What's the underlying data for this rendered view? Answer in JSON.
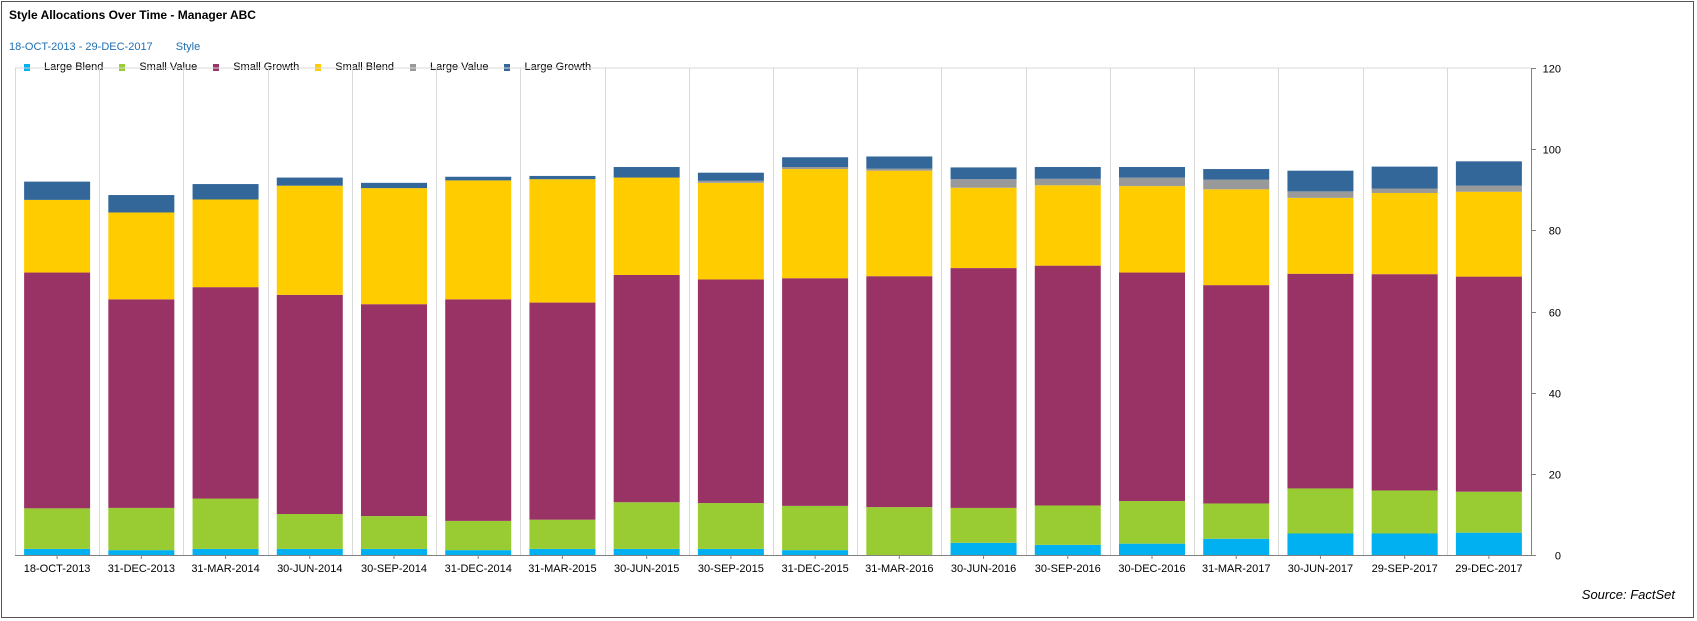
{
  "chart_data": {
    "type": "bar",
    "stacked": true,
    "title": "Style Allocations Over Time - Manager ABC",
    "date_range": "18-OCT-2013 - 29-DEC-2017",
    "group_label": "Style",
    "source": "Source: FactSet",
    "ylim": [
      0,
      120
    ],
    "yticks": [
      0,
      20,
      40,
      60,
      80,
      100,
      120
    ],
    "y_axis_side": "right",
    "legend_position": "top-left",
    "categories": [
      "18-OCT-2013",
      "31-DEC-2013",
      "31-MAR-2014",
      "30-JUN-2014",
      "30-SEP-2014",
      "31-DEC-2014",
      "31-MAR-2015",
      "30-JUN-2015",
      "30-SEP-2015",
      "31-DEC-2015",
      "31-MAR-2016",
      "30-JUN-2016",
      "30-SEP-2016",
      "30-DEC-2016",
      "31-MAR-2017",
      "30-JUN-2017",
      "29-SEP-2017",
      "29-DEC-2017"
    ],
    "series": [
      {
        "name": "Large Blend",
        "color": "#00b0f0",
        "values": [
          1.5,
          1.2,
          1.5,
          1.5,
          1.5,
          1.2,
          1.5,
          1.5,
          1.5,
          1.2,
          0.0,
          3.0,
          2.5,
          2.8,
          4.0,
          5.3,
          5.3,
          5.5
        ]
      },
      {
        "name": "Small Value",
        "color": "#99cc33",
        "values": [
          10.0,
          10.4,
          12.4,
          8.6,
          8.1,
          7.2,
          7.2,
          11.5,
          11.3,
          10.9,
          11.8,
          8.6,
          9.7,
          10.5,
          8.7,
          11.1,
          10.6,
          10.1
        ]
      },
      {
        "name": "Small Growth",
        "color": "#993366",
        "values": [
          58.1,
          51.4,
          52.1,
          54.0,
          52.2,
          54.6,
          53.5,
          56.0,
          55.1,
          56.1,
          56.9,
          59.1,
          59.1,
          56.3,
          53.8,
          52.9,
          53.3,
          53.0
        ]
      },
      {
        "name": "Small Blend",
        "color": "#ffcc00",
        "values": [
          17.9,
          21.4,
          21.6,
          26.9,
          28.6,
          29.3,
          30.4,
          24.0,
          23.8,
          26.9,
          26.0,
          19.8,
          19.8,
          21.3,
          23.6,
          18.7,
          20.0,
          20.9
        ]
      },
      {
        "name": "Large Value",
        "color": "#999999",
        "values": [
          0.0,
          0.0,
          0.0,
          0.0,
          0.0,
          0.0,
          0.0,
          0.0,
          0.5,
          0.5,
          0.5,
          2.1,
          1.6,
          2.1,
          2.4,
          1.6,
          1.1,
          1.5
        ]
      },
      {
        "name": "Large Growth",
        "color": "#336699",
        "values": [
          4.5,
          4.3,
          3.8,
          2.0,
          1.3,
          0.9,
          0.8,
          2.6,
          2.0,
          2.4,
          3.0,
          2.9,
          2.9,
          2.6,
          2.6,
          5.1,
          5.4,
          6.0
        ]
      }
    ]
  }
}
